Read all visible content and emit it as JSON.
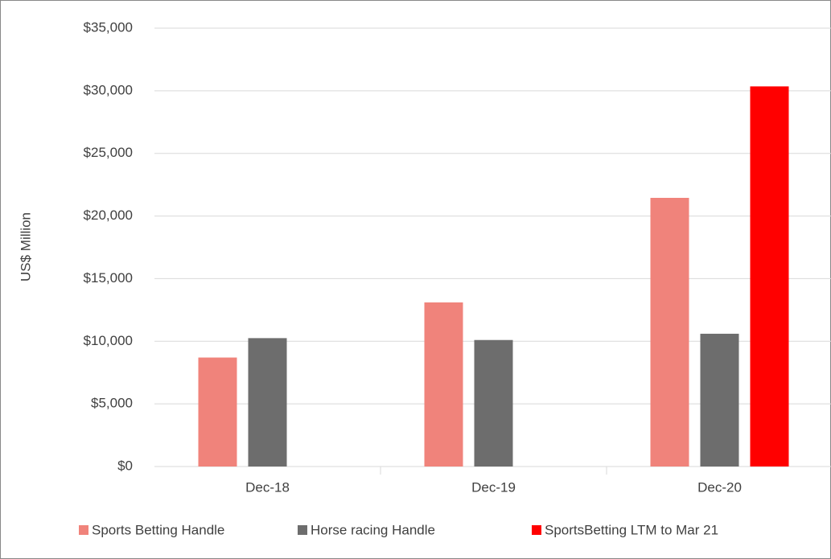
{
  "chart_data": {
    "type": "bar",
    "ylabel": "US$ Million",
    "categories": [
      "Dec-18",
      "Dec-19",
      "Dec-20"
    ],
    "series": [
      {
        "name": "Sports Betting Handle",
        "color": "#f0837b",
        "values": [
          8700,
          13100,
          21450
        ]
      },
      {
        "name": "Horse racing Handle",
        "color": "#6d6d6d",
        "values": [
          10250,
          10100,
          10600
        ]
      },
      {
        "name": "SportsBetting LTM to Mar 21",
        "color": "#ff0000",
        "values": [
          null,
          null,
          30350
        ]
      }
    ],
    "ylim": [
      0,
      35000
    ],
    "yticks": [
      {
        "value": 0,
        "label": "$0"
      },
      {
        "value": 5000,
        "label": "$5,000"
      },
      {
        "value": 10000,
        "label": "$10,000"
      },
      {
        "value": 15000,
        "label": "$15,000"
      },
      {
        "value": 20000,
        "label": "$20,000"
      },
      {
        "value": 25000,
        "label": "$25,000"
      },
      {
        "value": 30000,
        "label": "$30,000"
      },
      {
        "value": 35000,
        "label": "$35,000"
      }
    ],
    "grid": true,
    "legend": "bottom"
  }
}
